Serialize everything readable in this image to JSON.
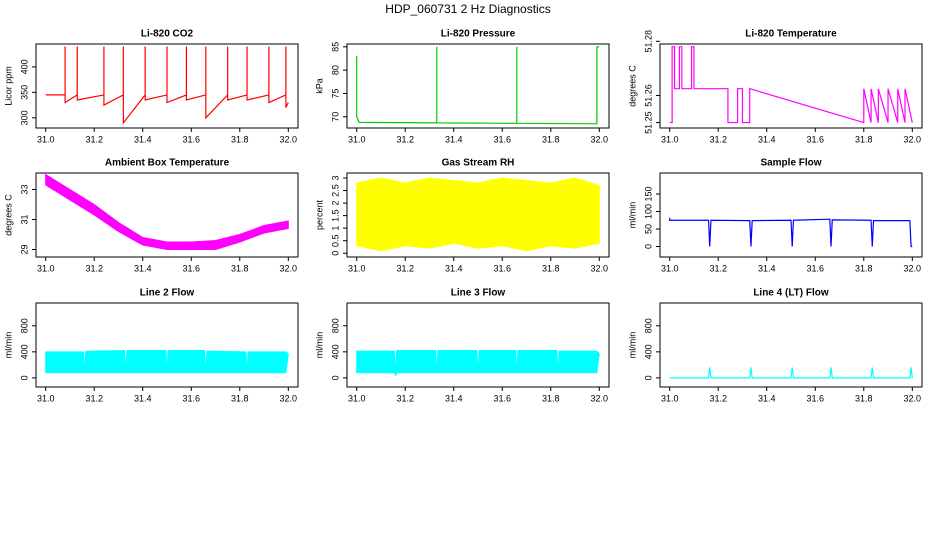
{
  "title": "HDP_060731 2 Hz Diagnostics",
  "chart_data": [
    {
      "type": "line",
      "title": "Li-820 CO2",
      "y_label": "Licor ppm",
      "xlim": [
        30.96,
        32.04
      ],
      "xticks": [
        {
          "value": 31.0,
          "label": "31.0"
        },
        31.2,
        31.4,
        31.6,
        31.8,
        {
          "value": 32.0,
          "label": "32.0"
        }
      ],
      "ylim": [
        280,
        445
      ],
      "yticks": [
        300,
        350,
        400
      ],
      "series": [
        {
          "color": "#ff0000",
          "x": [
            31.0,
            31.08,
            31.08,
            31.08,
            31.13,
            31.13,
            31.13,
            31.24,
            31.24,
            31.24,
            31.32,
            31.32,
            31.32,
            31.41,
            31.41,
            31.41,
            31.5,
            31.5,
            31.5,
            31.58,
            31.58,
            31.58,
            31.66,
            31.66,
            31.66,
            31.75,
            31.75,
            31.75,
            31.83,
            31.83,
            31.83,
            31.92,
            31.92,
            31.92,
            31.99,
            31.99,
            31.99,
            32.0
          ],
          "values": [
            345,
            345,
            440,
            330,
            345,
            440,
            335,
            345,
            440,
            325,
            345,
            440,
            290,
            345,
            440,
            335,
            345,
            440,
            330,
            345,
            440,
            335,
            345,
            440,
            300,
            345,
            440,
            335,
            345,
            440,
            335,
            345,
            440,
            330,
            345,
            440,
            320,
            330
          ]
        }
      ]
    },
    {
      "type": "line",
      "title": "Li-820 Pressure",
      "y_label": "kPa",
      "xlim": [
        30.96,
        32.04
      ],
      "xticks": [
        {
          "value": 31.0,
          "label": "31.0"
        },
        31.2,
        31.4,
        31.6,
        31.8,
        {
          "value": 32.0,
          "label": "32.0"
        }
      ],
      "ylim": [
        67.6,
        85.6
      ],
      "yticks": [
        70,
        75,
        80,
        85
      ],
      "series": [
        {
          "color": "#00cc00",
          "x": [
            31.0,
            31.0,
            31.01,
            31.33,
            31.33,
            31.33,
            31.66,
            31.66,
            31.66,
            31.99,
            31.99,
            32.0
          ],
          "values": [
            83,
            70,
            68.8,
            68.7,
            85,
            68.7,
            68.6,
            85,
            68.6,
            68.5,
            85,
            85
          ]
        }
      ]
    },
    {
      "type": "line",
      "title": "Li-820 Temperature",
      "y_label": "degrees C",
      "xlim": [
        30.96,
        32.04
      ],
      "xticks": [
        {
          "value": 31.0,
          "label": "31.0"
        },
        31.2,
        31.4,
        31.6,
        31.8,
        {
          "value": 32.0,
          "label": "32.0"
        }
      ],
      "ylim": [
        51.248,
        51.279
      ],
      "yticks": [
        51.25,
        51.26,
        51.28
      ],
      "series": [
        {
          "color": "#ff00ff",
          "x": [
            31.0,
            31.01,
            31.01,
            31.02,
            31.02,
            31.04,
            31.04,
            31.05,
            31.05,
            31.09,
            31.09,
            31.1,
            31.1,
            31.24,
            31.24,
            31.28,
            31.28,
            31.3,
            31.3,
            31.33,
            31.33,
            31.8,
            31.8,
            31.83,
            31.83,
            31.86,
            31.86,
            31.9,
            31.9,
            31.94,
            31.94,
            31.97,
            31.97,
            32.0
          ],
          "values": [
            51.25,
            51.25,
            51.278,
            51.278,
            51.2625,
            51.2625,
            51.278,
            51.278,
            51.2625,
            51.2625,
            51.278,
            51.278,
            51.2625,
            51.2625,
            51.25,
            51.25,
            51.2625,
            51.2625,
            51.25,
            51.25,
            51.2625,
            51.25,
            51.2625,
            51.25,
            51.2625,
            51.25,
            51.2625,
            51.25,
            51.2625,
            51.25,
            51.2625,
            51.25,
            51.2625,
            51.25
          ]
        }
      ]
    },
    {
      "type": "band",
      "title": "Ambient Box Temperature",
      "y_label": "degrees C",
      "xlim": [
        30.96,
        32.04
      ],
      "xticks": [
        {
          "value": 31.0,
          "label": "31.0"
        },
        31.2,
        31.4,
        31.6,
        31.8,
        {
          "value": 32.0,
          "label": "32.0"
        }
      ],
      "ylim": [
        28.5,
        34.1
      ],
      "yticks": [
        29,
        31,
        33
      ],
      "series": [
        {
          "color": "#ff00ff",
          "x": [
            31.0,
            31.1,
            31.2,
            31.3,
            31.4,
            31.5,
            31.6,
            31.7,
            31.8,
            31.9,
            32.0
          ],
          "upper": [
            34.0,
            33.0,
            32.0,
            30.8,
            29.8,
            29.5,
            29.5,
            29.6,
            30.0,
            30.6,
            30.9
          ],
          "lower": [
            33.3,
            32.3,
            31.3,
            30.2,
            29.3,
            29.0,
            29.0,
            29.0,
            29.5,
            30.1,
            30.4
          ]
        }
      ]
    },
    {
      "type": "band",
      "title": "Gas Stream RH",
      "y_label": "percent",
      "xlim": [
        30.96,
        32.04
      ],
      "xticks": [
        {
          "value": 31.0,
          "label": "31.0"
        },
        31.2,
        31.4,
        31.6,
        31.8,
        {
          "value": 32.0,
          "label": "32.0"
        }
      ],
      "ylim": [
        -0.15,
        3.2
      ],
      "yticks": [
        0.0,
        0.5,
        1.0,
        1.5,
        2.0,
        2.5,
        3.0
      ],
      "series": [
        {
          "color": "#ffff00",
          "x": [
            31.0,
            31.1,
            31.2,
            31.3,
            31.4,
            31.5,
            31.6,
            31.7,
            31.8,
            31.9,
            32.0
          ],
          "upper": [
            2.8,
            3.0,
            2.8,
            3.0,
            2.9,
            2.8,
            3.0,
            2.9,
            2.8,
            3.0,
            2.7
          ],
          "lower": [
            0.3,
            0.1,
            0.3,
            0.2,
            0.4,
            0.2,
            0.3,
            0.1,
            0.3,
            0.2,
            0.4
          ]
        }
      ]
    },
    {
      "type": "line",
      "title": "Sample Flow",
      "y_label": "ml/min",
      "xlim": [
        30.96,
        32.04
      ],
      "xticks": [
        {
          "value": 31.0,
          "label": "31.0"
        },
        31.2,
        31.4,
        31.6,
        31.8,
        {
          "value": 32.0,
          "label": "32.0"
        }
      ],
      "ylim": [
        -30,
        210
      ],
      "yticks": [
        0,
        50,
        100,
        150
      ],
      "series": [
        {
          "color": "#0000ff",
          "x": [
            31.0,
            31.0,
            31.16,
            31.165,
            31.17,
            31.33,
            31.335,
            31.34,
            31.5,
            31.505,
            31.51,
            31.66,
            31.665,
            31.67,
            31.83,
            31.835,
            31.84,
            31.99,
            31.995,
            32.0
          ],
          "values": [
            82,
            75,
            75,
            0,
            75,
            74,
            0,
            74,
            75,
            0,
            75,
            78,
            0,
            76,
            75,
            0,
            74,
            74,
            0,
            0
          ]
        }
      ]
    },
    {
      "type": "band",
      "title": "Line 2 Flow",
      "y_label": "ml/min",
      "xlim": [
        30.96,
        32.04
      ],
      "xticks": [
        {
          "value": 31.0,
          "label": "31.0"
        },
        31.2,
        31.4,
        31.6,
        31.8,
        {
          "value": 32.0,
          "label": "32.0"
        }
      ],
      "ylim": [
        -140,
        1150
      ],
      "yticks": [
        0,
        400,
        800
      ],
      "series": [
        {
          "color": "#00ffff",
          "x": [
            31.0,
            31.155,
            31.16,
            31.165,
            31.325,
            31.33,
            31.335,
            31.495,
            31.5,
            31.505,
            31.655,
            31.66,
            31.665,
            31.825,
            31.83,
            31.835,
            31.99,
            32.0
          ],
          "upper": [
            400,
            400,
            80,
            410,
            420,
            80,
            420,
            420,
            80,
            420,
            420,
            80,
            410,
            400,
            80,
            400,
            400,
            370
          ],
          "lower": [
            80,
            80,
            80,
            80,
            80,
            80,
            80,
            80,
            80,
            80,
            80,
            80,
            80,
            80,
            80,
            80,
            80,
            370
          ]
        }
      ]
    },
    {
      "type": "band",
      "title": "Line 3 Flow",
      "y_label": "ml/min",
      "xlim": [
        30.96,
        32.04
      ],
      "xticks": [
        {
          "value": 31.0,
          "label": "31.0"
        },
        31.2,
        31.4,
        31.6,
        31.8,
        {
          "value": 32.0,
          "label": "32.0"
        }
      ],
      "ylim": [
        -140,
        1150
      ],
      "yticks": [
        0,
        400,
        800
      ],
      "series": [
        {
          "color": "#00ffff",
          "x": [
            31.0,
            31.155,
            31.16,
            31.165,
            31.325,
            31.33,
            31.335,
            31.495,
            31.5,
            31.505,
            31.655,
            31.66,
            31.665,
            31.825,
            31.83,
            31.835,
            31.99,
            32.0
          ],
          "upper": [
            410,
            410,
            80,
            420,
            420,
            80,
            420,
            420,
            80,
            420,
            420,
            80,
            420,
            420,
            80,
            410,
            410,
            370
          ],
          "lower": [
            80,
            80,
            40,
            80,
            80,
            80,
            80,
            80,
            80,
            80,
            80,
            80,
            80,
            80,
            80,
            80,
            80,
            370
          ]
        }
      ]
    },
    {
      "type": "line",
      "title": "Line 4 (LT) Flow",
      "y_label": "ml/min",
      "xlim": [
        30.96,
        32.04
      ],
      "xticks": [
        {
          "value": 31.0,
          "label": "31.0"
        },
        31.2,
        31.4,
        31.6,
        31.8,
        {
          "value": 32.0,
          "label": "32.0"
        }
      ],
      "ylim": [
        -140,
        1150
      ],
      "yticks": [
        0,
        400,
        800
      ],
      "series": [
        {
          "color": "#00ffff",
          "x": [
            31.0,
            31.16,
            31.165,
            31.17,
            31.33,
            31.335,
            31.34,
            31.5,
            31.505,
            31.51,
            31.66,
            31.665,
            31.67,
            31.83,
            31.835,
            31.84,
            31.99,
            31.995,
            32.0
          ],
          "values": [
            0,
            0,
            160,
            0,
            0,
            160,
            0,
            0,
            160,
            0,
            0,
            160,
            0,
            0,
            160,
            0,
            0,
            160,
            0
          ]
        }
      ]
    }
  ]
}
